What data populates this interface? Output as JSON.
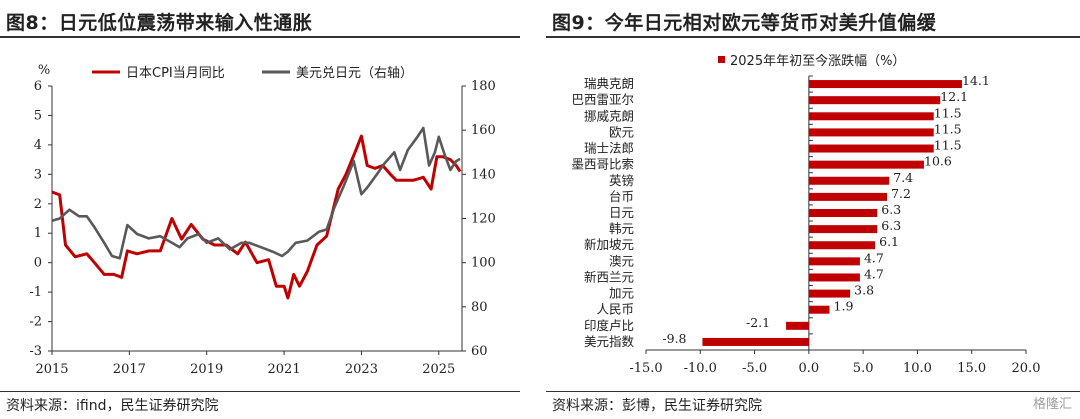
{
  "left_panel": {
    "title": "图8：日元低位震荡带来输入性通胀",
    "source": "资料来源：ifind，民生证券研究院"
  },
  "right_panel": {
    "title": "图9：今年日元相对欧元等货币对美升值偏缓",
    "source": "资料来源：彭博，民生证券研究院",
    "watermark": "格隆汇"
  },
  "colors": {
    "cpi": "#c00000",
    "fx": "#595959",
    "bar": "#c00000"
  },
  "chart_data": [
    {
      "type": "line",
      "unit_label": "%",
      "legend_placement": "top",
      "x_ticks": [
        "2015",
        "2017",
        "2019",
        "2021",
        "2023",
        "2025"
      ],
      "xlim": [
        2015,
        2025.6
      ],
      "ylim_left": [
        -3,
        6
      ],
      "y_ticks_left": [
        "-3",
        "-2",
        "-1",
        "0",
        "1",
        "2",
        "3",
        "4",
        "5",
        "6"
      ],
      "ylim_right": [
        60,
        180
      ],
      "y_ticks_right": [
        "60",
        "80",
        "100",
        "120",
        "140",
        "160",
        "180"
      ],
      "series": [
        {
          "name": "日本CPI当月同比",
          "axis": "left",
          "points": [
            [
              2015.0,
              2.4
            ],
            [
              2015.2,
              2.3
            ],
            [
              2015.35,
              0.6
            ],
            [
              2015.6,
              0.2
            ],
            [
              2015.9,
              0.3
            ],
            [
              2016.1,
              0.0
            ],
            [
              2016.35,
              -0.4
            ],
            [
              2016.6,
              -0.4
            ],
            [
              2016.8,
              -0.5
            ],
            [
              2016.95,
              0.4
            ],
            [
              2017.2,
              0.3
            ],
            [
              2017.5,
              0.4
            ],
            [
              2017.8,
              0.4
            ],
            [
              2018.1,
              1.5
            ],
            [
              2018.35,
              0.8
            ],
            [
              2018.6,
              1.3
            ],
            [
              2018.9,
              0.8
            ],
            [
              2019.2,
              0.6
            ],
            [
              2019.5,
              0.6
            ],
            [
              2019.8,
              0.3
            ],
            [
              2020.0,
              0.7
            ],
            [
              2020.3,
              0.0
            ],
            [
              2020.6,
              0.1
            ],
            [
              2020.8,
              -0.8
            ],
            [
              2021.0,
              -0.8
            ],
            [
              2021.1,
              -1.2
            ],
            [
              2021.25,
              -0.4
            ],
            [
              2021.4,
              -0.8
            ],
            [
              2021.6,
              -0.3
            ],
            [
              2021.85,
              0.6
            ],
            [
              2022.1,
              0.9
            ],
            [
              2022.4,
              2.5
            ],
            [
              2022.6,
              3.0
            ],
            [
              2022.85,
              3.8
            ],
            [
              2023.0,
              4.3
            ],
            [
              2023.15,
              3.3
            ],
            [
              2023.35,
              3.2
            ],
            [
              2023.55,
              3.3
            ],
            [
              2023.75,
              3.0
            ],
            [
              2023.9,
              2.8
            ],
            [
              2024.1,
              2.8
            ],
            [
              2024.35,
              2.8
            ],
            [
              2024.6,
              2.9
            ],
            [
              2024.8,
              2.5
            ],
            [
              2024.95,
              3.6
            ],
            [
              2025.1,
              3.6
            ],
            [
              2025.3,
              3.5
            ],
            [
              2025.45,
              3.3
            ],
            [
              2025.55,
              3.1
            ]
          ]
        },
        {
          "name": "美元兑日元（右轴）",
          "axis": "right",
          "points": [
            [
              2015.0,
              119
            ],
            [
              2015.2,
              120
            ],
            [
              2015.45,
              124
            ],
            [
              2015.7,
              121
            ],
            [
              2015.9,
              121
            ],
            [
              2016.1,
              116
            ],
            [
              2016.35,
              109
            ],
            [
              2016.55,
              103
            ],
            [
              2016.75,
              102
            ],
            [
              2016.95,
              117
            ],
            [
              2017.2,
              113
            ],
            [
              2017.5,
              111
            ],
            [
              2017.8,
              112
            ],
            [
              2018.1,
              109
            ],
            [
              2018.3,
              107
            ],
            [
              2018.5,
              111
            ],
            [
              2018.8,
              113
            ],
            [
              2019.0,
              109
            ],
            [
              2019.3,
              111
            ],
            [
              2019.6,
              106
            ],
            [
              2019.9,
              109
            ],
            [
              2020.1,
              109
            ],
            [
              2020.4,
              107
            ],
            [
              2020.7,
              105
            ],
            [
              2020.95,
              103
            ],
            [
              2021.1,
              105
            ],
            [
              2021.3,
              109
            ],
            [
              2021.6,
              110
            ],
            [
              2021.9,
              114
            ],
            [
              2022.1,
              115
            ],
            [
              2022.3,
              125
            ],
            [
              2022.55,
              135
            ],
            [
              2022.8,
              146
            ],
            [
              2023.0,
              131
            ],
            [
              2023.15,
              134
            ],
            [
              2023.4,
              140
            ],
            [
              2023.6,
              145
            ],
            [
              2023.85,
              150
            ],
            [
              2024.0,
              142
            ],
            [
              2024.2,
              151
            ],
            [
              2024.45,
              157
            ],
            [
              2024.6,
              161
            ],
            [
              2024.75,
              144
            ],
            [
              2024.9,
              150
            ],
            [
              2025.0,
              157
            ],
            [
              2025.15,
              149
            ],
            [
              2025.3,
              142
            ],
            [
              2025.45,
              146
            ],
            [
              2025.55,
              147
            ]
          ]
        }
      ]
    },
    {
      "type": "bar",
      "orientation": "horizontal",
      "legend": "2025年年初至今涨跌幅（%）",
      "categories": [
        "瑞典克朗",
        "巴西雷亚尔",
        "挪威克朗",
        "欧元",
        "瑞士法郎",
        "墨西哥比索",
        "英镑",
        "台币",
        "日元",
        "韩元",
        "新加坡元",
        "澳元",
        "新西兰元",
        "加元",
        "人民币",
        "印度卢比",
        "美元指数"
      ],
      "values": [
        14.1,
        12.1,
        11.5,
        11.5,
        11.5,
        10.6,
        7.4,
        7.2,
        6.3,
        6.3,
        6.1,
        4.7,
        4.7,
        3.8,
        1.9,
        -2.1,
        -9.8
      ],
      "value_labels": [
        "14.1",
        "12.1",
        "11.5",
        "11.5",
        "11.5",
        "10.6",
        "7.4",
        "7.2",
        "6.3",
        "6.3",
        "6.1",
        "4.7",
        "4.7",
        "3.8",
        "1.9",
        "-2.1",
        "-9.8"
      ],
      "x_ticks": [
        "-15.0",
        "-10.0",
        "-5.0",
        "0.0",
        "5.0",
        "10.0",
        "15.0",
        "20.0"
      ],
      "xlim": [
        -15,
        20
      ]
    }
  ]
}
